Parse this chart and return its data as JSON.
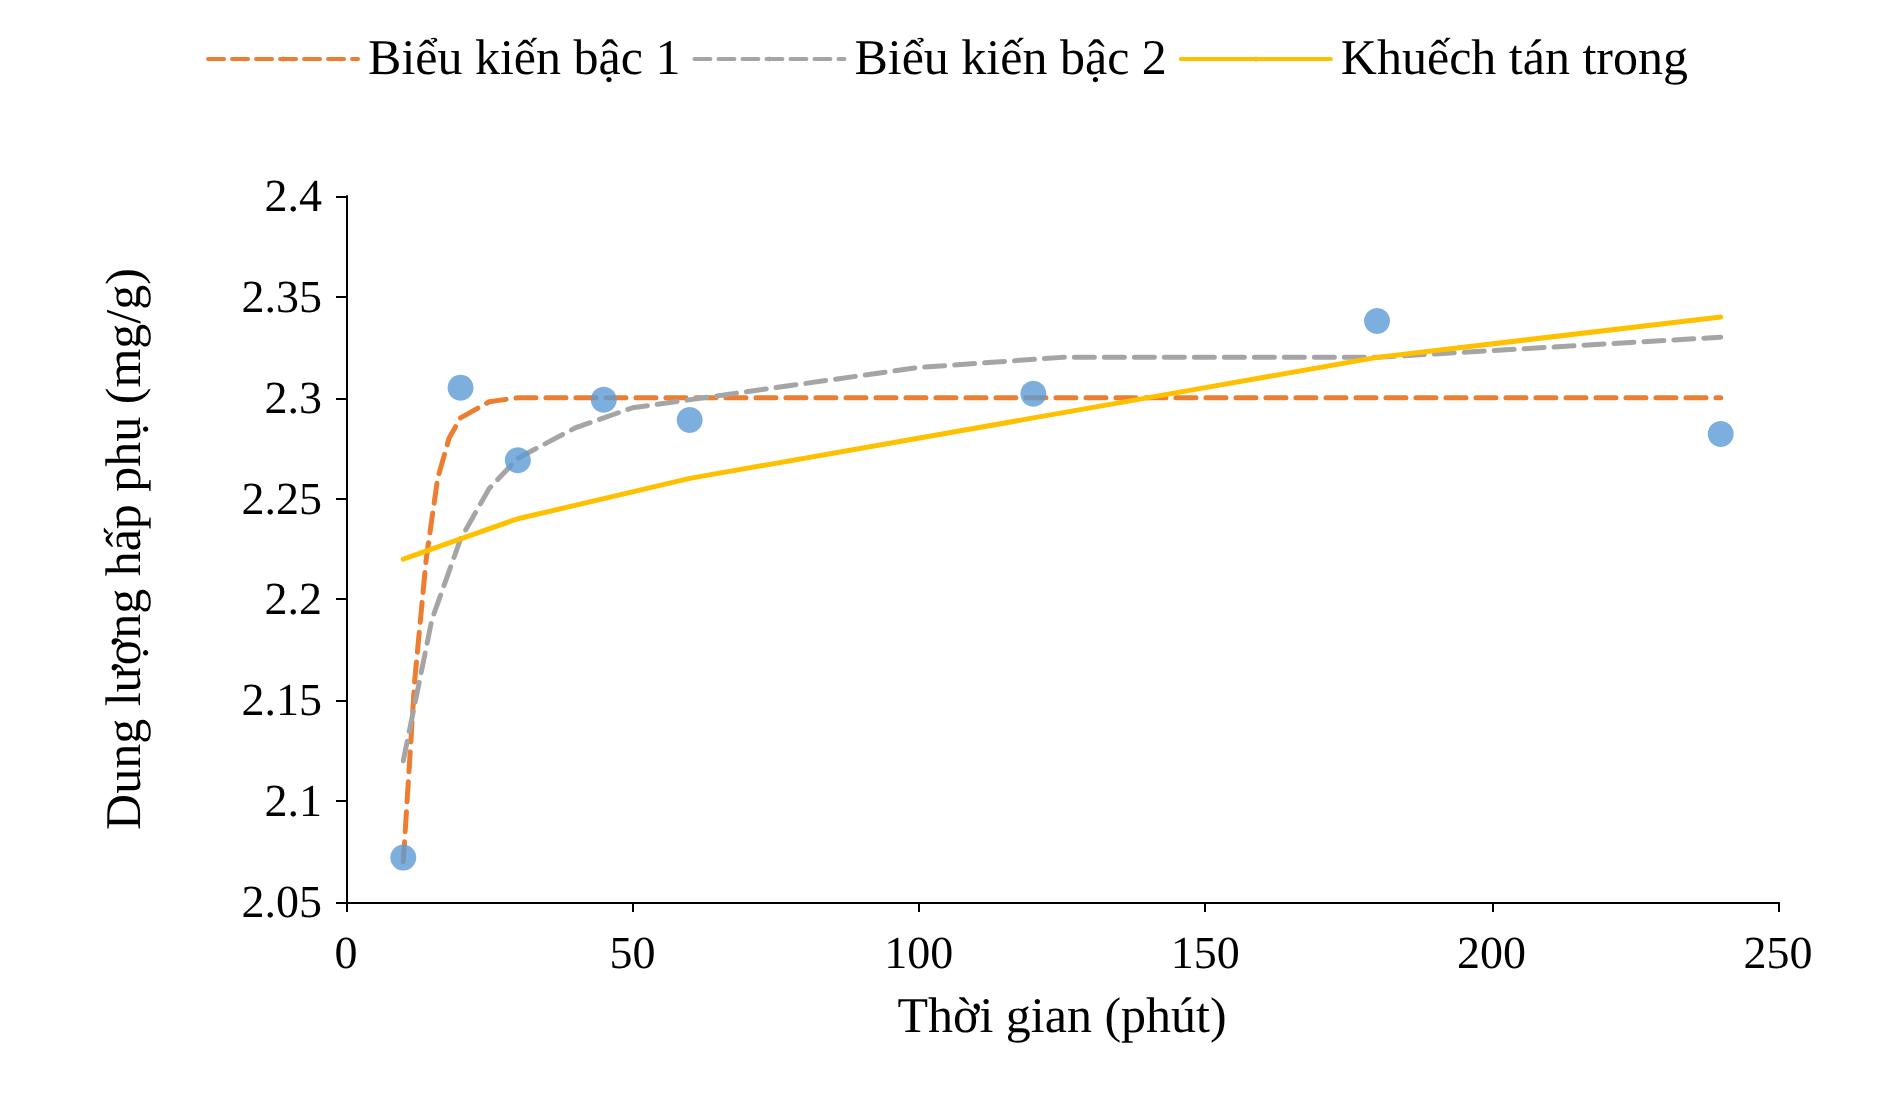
{
  "chart_data": {
    "type": "scatter",
    "xlabel": "Thời gian (phút)",
    "ylabel": "Dung lượng hấp phụ (mg/g)",
    "xlim": [
      0,
      250
    ],
    "xticks": [
      0,
      50,
      100,
      150,
      200,
      250
    ],
    "ylim": [
      2.05,
      2.4
    ],
    "yticks": [
      2.05,
      2.1,
      2.15,
      2.2,
      2.25,
      2.3,
      2.35,
      2.4
    ],
    "grid": false,
    "legend": "top",
    "marker": "circle",
    "series": [
      {
        "type": "line",
        "name": "Biểu kiến bậc 1",
        "color": "#ed7d31",
        "line_style": "dashed",
        "marker": "none",
        "x": [
          10,
          12,
          14,
          16,
          18,
          20,
          25,
          30,
          50,
          100,
          150,
          200,
          240
        ],
        "values": [
          2.07,
          2.16,
          2.22,
          2.26,
          2.28,
          2.29,
          2.298,
          2.3,
          2.3,
          2.3,
          2.3,
          2.3,
          2.3
        ]
      },
      {
        "type": "line",
        "name": "Biểu kiến bậc 2",
        "color": "#a5a5a5",
        "line_style": "dashed",
        "marker": "none",
        "x": [
          10,
          15,
          20,
          25,
          30,
          40,
          50,
          75,
          100,
          125,
          150,
          180,
          210,
          240
        ],
        "values": [
          2.12,
          2.19,
          2.23,
          2.255,
          2.27,
          2.285,
          2.295,
          2.305,
          2.315,
          2.32,
          2.32,
          2.32,
          2.325,
          2.33
        ]
      },
      {
        "type": "line",
        "name": "Khuếch tán trong",
        "color": "#ffc000",
        "line_style": "solid",
        "marker": "none",
        "x": [
          10,
          20,
          30,
          45,
          60,
          120,
          150,
          180,
          240
        ],
        "values": [
          2.22,
          2.23,
          2.24,
          2.25,
          2.26,
          2.29,
          2.305,
          2.32,
          2.34
        ]
      },
      {
        "color": "#5b9bd5",
        "x": [
          10,
          20,
          30,
          45,
          60,
          120,
          180,
          240
        ],
        "values": [
          2.072,
          2.305,
          2.269,
          2.299,
          2.289,
          2.302,
          2.338,
          2.282
        ]
      }
    ]
  }
}
